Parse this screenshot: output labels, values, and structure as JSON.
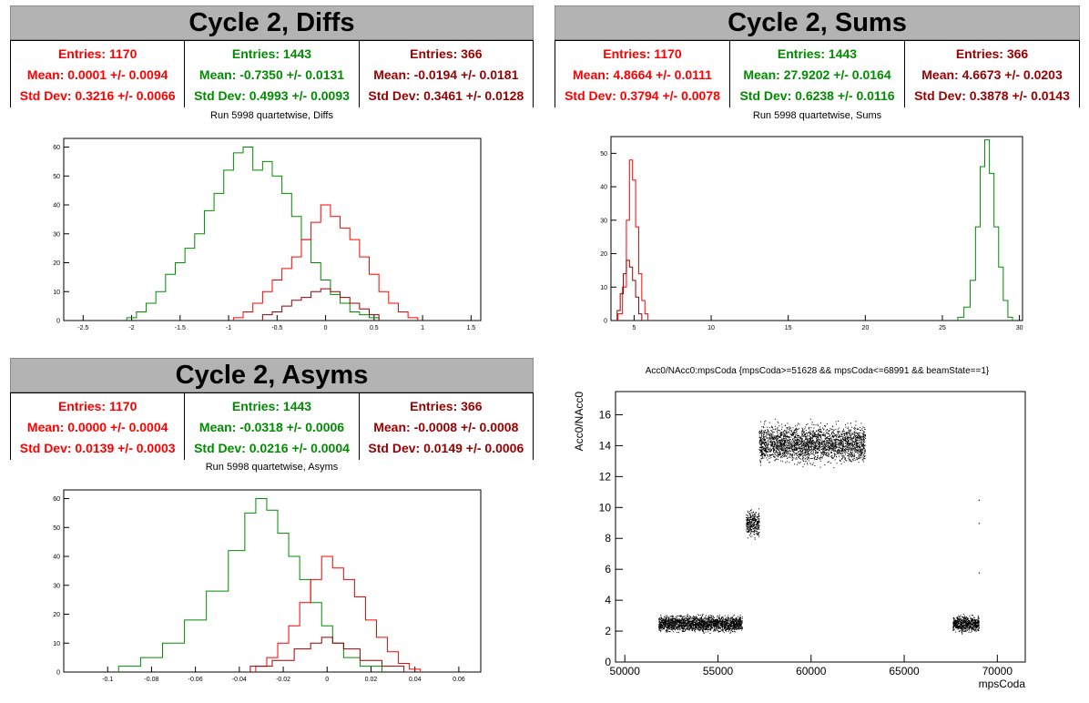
{
  "colors": {
    "red": "#ff0000",
    "green": "#008c00",
    "darkred": "#990000",
    "black": "#000000"
  },
  "panels": [
    {
      "id": "diffs",
      "title": "Cycle 2, Diffs",
      "subtitle": "Run 5998 quartetwise, Diffs",
      "stats": [
        {
          "entries": "Entries: 1170",
          "mean": "Mean: 0.0001 +/- 0.0094",
          "std": "Std Dev: 0.3216 +/- 0.0066",
          "color": "#ff0000"
        },
        {
          "entries": "Entries: 1443",
          "mean": "Mean: -0.7350 +/- 0.0131",
          "std": "Std Dev: 0.4993 +/- 0.0093",
          "color": "#008c00"
        },
        {
          "entries": "Entries: 366",
          "mean": "Mean: -0.0194 +/- 0.0181",
          "std": "Std Dev: 0.3461 +/- 0.0128",
          "color": "#990000"
        }
      ]
    },
    {
      "id": "sums",
      "title": "Cycle 2, Sums",
      "subtitle": "Run 5998 quartetwise, Sums",
      "stats": [
        {
          "entries": "Entries: 1170",
          "mean": "Mean: 4.8664 +/- 0.0111",
          "std": "Std Dev: 0.3794 +/- 0.0078",
          "color": "#ff0000"
        },
        {
          "entries": "Entries: 1443",
          "mean": "Mean: 27.9202 +/- 0.0164",
          "std": "Std Dev: 0.6238 +/- 0.0116",
          "color": "#008c00"
        },
        {
          "entries": "Entries: 366",
          "mean": "Mean: 4.6673 +/- 0.0203",
          "std": "Std Dev: 0.3878 +/- 0.0143",
          "color": "#990000"
        }
      ]
    },
    {
      "id": "asyms",
      "title": "Cycle 2, Asyms",
      "subtitle": "Run 5998 quartetwise, Asyms",
      "stats": [
        {
          "entries": "Entries: 1170",
          "mean": "Mean: 0.0000 +/- 0.0004",
          "std": "Std Dev: 0.0139 +/- 0.0003",
          "color": "#ff0000"
        },
        {
          "entries": "Entries: 1443",
          "mean": "Mean: -0.0318 +/- 0.0006",
          "std": "Std Dev: 0.0216 +/- 0.0004",
          "color": "#008c00"
        },
        {
          "entries": "Entries: 366",
          "mean": "Mean: -0.0008 +/- 0.0008",
          "std": "Std Dev: 0.0149 +/- 0.0006",
          "color": "#990000"
        }
      ]
    }
  ],
  "chart_data": [
    {
      "id": "diffs",
      "type": "histogram",
      "xlim": [
        -2.7,
        1.6
      ],
      "ylim": [
        0,
        63
      ],
      "xticks": [
        -2.5,
        -2,
        -1.5,
        -1,
        -0.5,
        0,
        0.5,
        1,
        1.5
      ],
      "xtick_labels": [
        "-2.5",
        "-2",
        "-1.5",
        "-1",
        "-0.5",
        "0",
        "0.5",
        "1",
        "1.5"
      ],
      "yticks": [
        0,
        10,
        20,
        30,
        40,
        50,
        60
      ],
      "ytick_labels": [
        "0",
        "10",
        "20",
        "30",
        "40",
        "50",
        "60"
      ],
      "series": [
        {
          "color": "#008c00",
          "centers": [
            -2.0,
            -1.9,
            -1.8,
            -1.7,
            -1.6,
            -1.5,
            -1.4,
            -1.3,
            -1.2,
            -1.1,
            -1.0,
            -0.9,
            -0.8,
            -0.7,
            -0.6,
            -0.5,
            -0.4,
            -0.3,
            -0.2,
            -0.1,
            0.0,
            0.1,
            0.2,
            0.3,
            0.4,
            0.5
          ],
          "counts": [
            1,
            3,
            6,
            10,
            16,
            20,
            25,
            30,
            38,
            44,
            52,
            58,
            60,
            52,
            55,
            50,
            44,
            36,
            28,
            20,
            14,
            9,
            6,
            3,
            2,
            1
          ]
        },
        {
          "color": "#ff0000",
          "centers": [
            -0.9,
            -0.8,
            -0.7,
            -0.6,
            -0.5,
            -0.4,
            -0.3,
            -0.2,
            -0.1,
            0.0,
            0.1,
            0.2,
            0.3,
            0.4,
            0.5,
            0.6,
            0.7,
            0.8,
            0.9
          ],
          "counts": [
            1,
            3,
            6,
            10,
            14,
            18,
            22,
            28,
            34,
            40,
            36,
            32,
            28,
            22,
            16,
            10,
            6,
            3,
            1
          ]
        },
        {
          "color": "#990000",
          "centers": [
            -0.6,
            -0.5,
            -0.4,
            -0.3,
            -0.2,
            -0.1,
            0.0,
            0.1,
            0.2,
            0.3,
            0.4,
            0.5
          ],
          "counts": [
            2,
            3,
            5,
            7,
            8,
            10,
            11,
            10,
            8,
            6,
            4,
            2
          ]
        }
      ]
    },
    {
      "id": "sums",
      "type": "histogram",
      "xlim": [
        3.5,
        30.2
      ],
      "ylim": [
        0,
        55
      ],
      "xticks": [
        5,
        10,
        15,
        20,
        25,
        30
      ],
      "xtick_labels": [
        "5",
        "10",
        "15",
        "20",
        "25",
        "30"
      ],
      "yticks": [
        0,
        10,
        20,
        30,
        40,
        50
      ],
      "ytick_labels": [
        "0",
        "10",
        "20",
        "30",
        "40",
        "50"
      ],
      "series": [
        {
          "color": "#008c00",
          "centers": [
            26.2,
            26.6,
            27.0,
            27.3,
            27.6,
            27.9,
            28.2,
            28.5,
            28.8,
            29.1,
            29.4
          ],
          "counts": [
            1,
            4,
            12,
            28,
            46,
            54,
            44,
            28,
            16,
            6,
            1
          ]
        },
        {
          "color": "#ff0000",
          "centers": [
            4.1,
            4.4,
            4.6,
            4.8,
            5.0,
            5.2,
            5.4,
            5.6,
            5.8
          ],
          "counts": [
            2,
            10,
            30,
            48,
            42,
            28,
            14,
            6,
            2
          ]
        },
        {
          "color": "#990000",
          "centers": [
            4.0,
            4.2,
            4.4,
            4.6,
            4.8,
            5.0,
            5.2,
            5.4
          ],
          "counts": [
            3,
            8,
            14,
            18,
            16,
            12,
            7,
            2
          ]
        }
      ]
    },
    {
      "id": "asyms",
      "type": "histogram",
      "xlim": [
        -0.12,
        0.07
      ],
      "ylim": [
        0,
        63
      ],
      "xticks": [
        -0.1,
        -0.08,
        -0.06,
        -0.04,
        -0.02,
        0,
        0.02,
        0.04,
        0.06
      ],
      "xtick_labels": [
        "-0.1",
        "-0.08",
        "-0.06",
        "-0.04",
        "-0.02",
        "0",
        "0.02",
        "0.04",
        "0.06"
      ],
      "yticks": [
        0,
        10,
        20,
        30,
        40,
        50,
        60
      ],
      "ytick_labels": [
        "0",
        "10",
        "20",
        "30",
        "40",
        "50",
        "60"
      ],
      "series": [
        {
          "color": "#008c00",
          "centers": [
            -0.09,
            -0.08,
            -0.07,
            -0.06,
            -0.05,
            -0.04,
            -0.035,
            -0.03,
            -0.025,
            -0.02,
            -0.015,
            -0.01,
            -0.005,
            0.0,
            0.005,
            0.01,
            0.02
          ],
          "counts": [
            2,
            5,
            10,
            18,
            28,
            42,
            55,
            60,
            56,
            48,
            40,
            32,
            24,
            16,
            10,
            5,
            2
          ]
        },
        {
          "color": "#ff0000",
          "centers": [
            -0.03,
            -0.025,
            -0.02,
            -0.015,
            -0.01,
            -0.005,
            0.0,
            0.005,
            0.01,
            0.015,
            0.02,
            0.025,
            0.03,
            0.035,
            0.04
          ],
          "counts": [
            2,
            5,
            10,
            16,
            24,
            32,
            40,
            36,
            32,
            26,
            18,
            12,
            7,
            3,
            1
          ]
        },
        {
          "color": "#990000",
          "centers": [
            -0.03,
            -0.02,
            -0.01,
            -0.005,
            0.0,
            0.005,
            0.01,
            0.02,
            0.03
          ],
          "counts": [
            2,
            4,
            8,
            10,
            12,
            10,
            8,
            4,
            2
          ]
        }
      ]
    },
    {
      "id": "scatter",
      "type": "scatter",
      "title": "Acc0/NAcc0:mpsCoda {mpsCoda>=51628 && mpsCoda<=68991 && beamState==1}",
      "xlabel": "mpsCoda",
      "ylabel": "Acc0/NAcc0",
      "xlim": [
        49500,
        71500
      ],
      "ylim": [
        0,
        17.5
      ],
      "xticks": [
        50000,
        55000,
        60000,
        65000,
        70000
      ],
      "xtick_labels": [
        "50000",
        "55000",
        "60000",
        "65000",
        "70000"
      ],
      "yticks": [
        0,
        2,
        4,
        6,
        8,
        10,
        12,
        14,
        16
      ],
      "ytick_labels": [
        "0",
        "2",
        "4",
        "6",
        "8",
        "10",
        "12",
        "14",
        "16"
      ],
      "clusters": [
        {
          "x": [
            51800,
            56300
          ],
          "y": [
            1.8,
            3.2
          ],
          "y_center": 2.5
        },
        {
          "x": [
            56500,
            57200
          ],
          "y": [
            7.8,
            10.2
          ],
          "y_center": 9.0
        },
        {
          "x": [
            57200,
            62900
          ],
          "y": [
            12.5,
            15.8
          ],
          "y_center": 14.0
        },
        {
          "x": [
            67600,
            69000
          ],
          "y": [
            1.8,
            3.2
          ],
          "y_center": 2.5
        }
      ],
      "outliers": [
        [
          69000,
          10.5
        ],
        [
          69000,
          9.0
        ],
        [
          69000,
          5.8
        ]
      ]
    }
  ]
}
